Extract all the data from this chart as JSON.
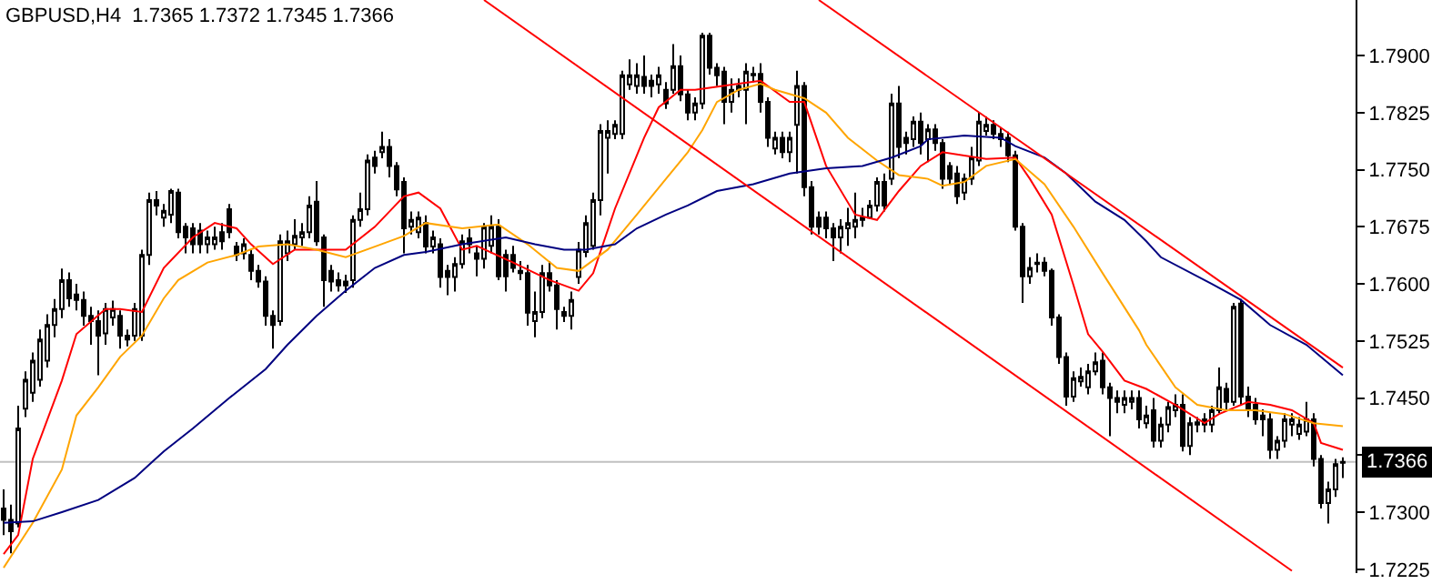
{
  "chart_data": {
    "type": "candlestick",
    "title": "GBPUSD,H4  1.7365 1.7372 1.7345 1.7366",
    "color": "#000000",
    "categories": [
      null,
      null,
      null,
      null,
      null,
      null,
      null,
      null,
      null,
      null,
      null,
      null,
      null,
      null,
      null,
      null,
      null,
      null,
      null,
      null,
      null,
      null,
      null,
      null,
      null,
      null,
      null,
      null,
      null,
      null,
      null,
      null,
      null,
      null,
      null,
      null,
      null,
      null,
      null,
      null,
      null,
      null,
      null,
      null,
      null,
      null,
      null,
      null,
      null,
      null,
      null,
      null,
      null,
      null,
      null,
      null,
      null,
      null,
      null,
      null,
      null,
      null,
      null,
      null,
      null,
      null,
      null,
      null,
      null,
      null,
      null,
      null,
      null,
      null,
      null,
      null,
      null,
      null,
      null,
      null,
      null,
      null,
      null,
      null,
      null,
      null,
      null,
      null,
      null,
      null,
      null,
      null,
      null,
      null,
      null,
      null,
      null,
      null,
      null,
      null,
      null,
      null,
      null,
      null,
      null,
      null,
      null,
      null,
      null,
      null,
      null,
      null,
      null,
      null,
      null,
      null,
      null,
      null,
      null,
      null,
      null,
      null,
      null,
      null,
      null,
      null,
      null,
      null,
      null,
      null,
      null,
      null,
      null,
      null,
      null,
      null,
      null,
      null,
      null,
      null,
      null,
      null,
      null,
      null,
      null,
      null,
      null,
      null,
      null,
      null,
      null,
      null,
      null,
      null,
      null,
      null,
      null,
      null,
      null,
      null,
      null,
      null,
      null,
      null,
      null,
      null,
      null,
      null,
      null,
      null,
      null,
      null,
      null,
      null,
      null,
      null,
      null,
      null,
      null,
      null,
      null,
      null,
      null,
      null,
      null
    ],
    "ohlc": [
      [
        1.7305,
        1.733,
        1.727,
        1.729
      ],
      [
        1.729,
        1.731,
        1.7246,
        1.7275
      ],
      [
        1.7285,
        1.744,
        1.728,
        1.741
      ],
      [
        1.7436,
        1.7485,
        1.7425,
        1.7474
      ],
      [
        1.7457,
        1.751,
        1.7445,
        1.7499
      ],
      [
        1.7474,
        1.754,
        1.7465,
        1.7527
      ],
      [
        1.7499,
        1.756,
        1.749,
        1.7546
      ],
      [
        1.7546,
        1.758,
        1.753,
        1.7567
      ],
      [
        1.7567,
        1.762,
        1.7555,
        1.7605
      ],
      [
        1.7605,
        1.7615,
        1.757,
        1.7581
      ],
      [
        1.7586,
        1.76,
        1.7565,
        1.7579
      ],
      [
        1.7579,
        1.759,
        1.7545,
        1.7558
      ],
      [
        1.7558,
        1.757,
        1.752,
        1.7551
      ],
      [
        1.7551,
        1.7565,
        1.748,
        1.7532
      ],
      [
        1.7535,
        1.7575,
        1.752,
        1.7567
      ],
      [
        1.7556,
        1.7578,
        1.7545,
        1.7567
      ],
      [
        1.7558,
        1.7565,
        1.7515,
        1.7532
      ],
      [
        1.7532,
        1.754,
        1.7518,
        1.7527
      ],
      [
        1.7532,
        1.7575,
        1.7525,
        1.7567
      ],
      [
        1.7532,
        1.7645,
        1.7525,
        1.7638
      ],
      [
        1.7638,
        1.772,
        1.7625,
        1.771
      ],
      [
        1.771,
        1.7722,
        1.769,
        1.7703
      ],
      [
        1.7687,
        1.7705,
        1.7675,
        1.7696
      ],
      [
        1.7691,
        1.7725,
        1.768,
        1.7722
      ],
      [
        1.772,
        1.7725,
        1.766,
        1.7668
      ],
      [
        1.7675,
        1.768,
        1.764,
        1.7661
      ],
      [
        1.7673,
        1.768,
        1.764,
        1.7652
      ],
      [
        1.767,
        1.768,
        1.764,
        1.7652
      ],
      [
        1.7652,
        1.767,
        1.764,
        1.7661
      ],
      [
        1.7652,
        1.7675,
        1.7645,
        1.7661
      ],
      [
        1.7668,
        1.768,
        1.7645,
        1.7656
      ],
      [
        1.7698,
        1.7705,
        1.766,
        1.7668
      ],
      [
        1.7649,
        1.7655,
        1.763,
        1.7638
      ],
      [
        1.764,
        1.766,
        1.7632,
        1.7652
      ],
      [
        1.7638,
        1.7645,
        1.7605,
        1.7617
      ],
      [
        1.7617,
        1.7625,
        1.7595,
        1.7603
      ],
      [
        1.7603,
        1.761,
        1.7545,
        1.7558
      ],
      [
        1.7558,
        1.7565,
        1.7515,
        1.7546
      ],
      [
        1.7551,
        1.7665,
        1.7545,
        1.7656
      ],
      [
        1.764,
        1.767,
        1.763,
        1.7656
      ],
      [
        1.7652,
        1.7685,
        1.7645,
        1.7663
      ],
      [
        1.7661,
        1.768,
        1.765,
        1.7668
      ],
      [
        1.7668,
        1.7715,
        1.766,
        1.7703
      ],
      [
        1.7708,
        1.7735,
        1.765,
        1.7656
      ],
      [
        1.7661,
        1.7665,
        1.757,
        1.7605
      ],
      [
        1.7617,
        1.7625,
        1.759,
        1.7603
      ],
      [
        1.7605,
        1.7615,
        1.759,
        1.7598
      ],
      [
        1.7603,
        1.7612,
        1.7588,
        1.7598
      ],
      [
        1.7605,
        1.769,
        1.7595,
        1.7684
      ],
      [
        1.7684,
        1.772,
        1.7675,
        1.7698
      ],
      [
        1.7698,
        1.777,
        1.769,
        1.7762
      ],
      [
        1.7766,
        1.7775,
        1.7745,
        1.7755
      ],
      [
        1.7773,
        1.78,
        1.7765,
        1.778
      ],
      [
        1.778,
        1.779,
        1.774,
        1.7755
      ],
      [
        1.7755,
        1.776,
        1.7715,
        1.7724
      ],
      [
        1.7734,
        1.774,
        1.764,
        1.7673
      ],
      [
        1.7675,
        1.7695,
        1.7665,
        1.7684
      ],
      [
        1.7668,
        1.7695,
        1.766,
        1.7687
      ],
      [
        1.768,
        1.769,
        1.764,
        1.7649
      ],
      [
        1.7649,
        1.767,
        1.764,
        1.7661
      ],
      [
        1.7652,
        1.766,
        1.7595,
        1.7609
      ],
      [
        1.7617,
        1.7625,
        1.7585,
        1.7609
      ],
      [
        1.7609,
        1.7635,
        1.759,
        1.7626
      ],
      [
        1.7626,
        1.7665,
        1.762,
        1.7656
      ],
      [
        1.766,
        1.7672,
        1.764,
        1.7652
      ],
      [
        1.764,
        1.765,
        1.761,
        1.7633
      ],
      [
        1.7633,
        1.768,
        1.762,
        1.7675
      ],
      [
        1.765,
        1.769,
        1.764,
        1.7675
      ],
      [
        1.7675,
        1.7685,
        1.7605,
        1.761
      ],
      [
        1.7638,
        1.7645,
        1.759,
        1.761
      ],
      [
        1.7638,
        1.765,
        1.7615,
        1.7621
      ],
      [
        1.7617,
        1.763,
        1.7605,
        1.7614
      ],
      [
        1.7614,
        1.7625,
        1.7545,
        1.7562
      ],
      [
        1.7551,
        1.759,
        1.753,
        1.7563
      ],
      [
        1.7563,
        1.7625,
        1.7555,
        1.7614
      ],
      [
        1.7614,
        1.763,
        1.759,
        1.7598
      ],
      [
        1.7598,
        1.7605,
        1.754,
        1.7567
      ],
      [
        1.7563,
        1.757,
        1.755,
        1.7558
      ],
      [
        1.7558,
        1.759,
        1.754,
        1.7579
      ],
      [
        1.7609,
        1.7655,
        1.76,
        1.7645
      ],
      [
        1.7642,
        1.769,
        1.7635,
        1.768
      ],
      [
        1.765,
        1.772,
        1.7645,
        1.771
      ],
      [
        1.771,
        1.781,
        1.769,
        1.7801
      ],
      [
        1.7792,
        1.7815,
        1.7745,
        1.7801
      ],
      [
        1.7797,
        1.7815,
        1.779,
        1.7809
      ],
      [
        1.7797,
        1.788,
        1.779,
        1.7874
      ],
      [
        1.7862,
        1.7895,
        1.7855,
        1.7874
      ],
      [
        1.786,
        1.789,
        1.785,
        1.7874
      ],
      [
        1.7872,
        1.79,
        1.785,
        1.786
      ],
      [
        1.7867,
        1.7875,
        1.7845,
        1.786
      ],
      [
        1.7862,
        1.7885,
        1.785,
        1.7874
      ],
      [
        1.7855,
        1.7865,
        1.783,
        1.7837
      ],
      [
        1.7855,
        1.7915,
        1.785,
        1.7886
      ],
      [
        1.7886,
        1.79,
        1.784,
        1.7849
      ],
      [
        1.7849,
        1.7855,
        1.7815,
        1.7825
      ],
      [
        1.7825,
        1.7845,
        1.7815,
        1.7837
      ],
      [
        1.7837,
        1.793,
        1.783,
        1.7926
      ],
      [
        1.7926,
        1.793,
        1.7875,
        1.7884
      ],
      [
        1.7884,
        1.789,
        1.786,
        1.7874
      ],
      [
        1.7879,
        1.7885,
        1.781,
        1.7839
      ],
      [
        1.7839,
        1.787,
        1.7825,
        1.7855
      ],
      [
        1.7855,
        1.787,
        1.7845,
        1.786
      ],
      [
        1.7855,
        1.789,
        1.781,
        1.7879
      ],
      [
        1.7874,
        1.7885,
        1.7865,
        1.7876
      ],
      [
        1.7876,
        1.789,
        1.7825,
        1.7839
      ],
      [
        1.7839,
        1.7845,
        1.778,
        1.7792
      ],
      [
        1.7778,
        1.78,
        1.777,
        1.7792
      ],
      [
        1.7792,
        1.78,
        1.7765,
        1.7773
      ],
      [
        1.7773,
        1.78,
        1.776,
        1.7792
      ],
      [
        1.7809,
        1.788,
        1.7745,
        1.786
      ],
      [
        1.786,
        1.7865,
        1.7715,
        1.7727
      ],
      [
        1.7727,
        1.7735,
        1.7665,
        1.7675
      ],
      [
        1.7687,
        1.7695,
        1.7665,
        1.7675
      ],
      [
        1.7687,
        1.7695,
        1.766,
        1.7673
      ],
      [
        1.7673,
        1.768,
        1.763,
        1.7661
      ],
      [
        1.7661,
        1.7685,
        1.764,
        1.7675
      ],
      [
        1.7673,
        1.77,
        1.765,
        1.768
      ],
      [
        1.7675,
        1.772,
        1.766,
        1.7684
      ],
      [
        1.7684,
        1.77,
        1.7675,
        1.7687
      ],
      [
        1.7687,
        1.771,
        1.7685,
        1.7703
      ],
      [
        1.7703,
        1.774,
        1.7695,
        1.7734
      ],
      [
        1.7734,
        1.7745,
        1.7695,
        1.7703
      ],
      [
        1.7738,
        1.785,
        1.773,
        1.7837
      ],
      [
        1.7837,
        1.786,
        1.7765,
        1.778
      ],
      [
        1.7792,
        1.78,
        1.777,
        1.7785
      ],
      [
        1.779,
        1.782,
        1.778,
        1.7813
      ],
      [
        1.7813,
        1.7825,
        1.777,
        1.7785
      ],
      [
        1.779,
        1.781,
        1.776,
        1.7803
      ],
      [
        1.7803,
        1.781,
        1.7775,
        1.7785
      ],
      [
        1.7785,
        1.779,
        1.7725,
        1.7738
      ],
      [
        1.7755,
        1.776,
        1.773,
        1.7738
      ],
      [
        1.7745,
        1.7755,
        1.7705,
        1.7715
      ],
      [
        1.772,
        1.7745,
        1.771,
        1.7738
      ],
      [
        1.7738,
        1.778,
        1.773,
        1.7766
      ],
      [
        1.7762,
        1.7825,
        1.7755,
        1.7813
      ],
      [
        1.7801,
        1.782,
        1.7795,
        1.7809
      ],
      [
        1.7809,
        1.7815,
        1.779,
        1.7797
      ],
      [
        1.7797,
        1.7805,
        1.778,
        1.779
      ],
      [
        1.7792,
        1.78,
        1.776,
        1.7769
      ],
      [
        1.7769,
        1.7775,
        1.767,
        1.7675
      ],
      [
        1.7675,
        1.768,
        1.7575,
        1.761
      ],
      [
        1.761,
        1.7635,
        1.76,
        1.7621
      ],
      [
        1.7626,
        1.764,
        1.7615,
        1.7628
      ],
      [
        1.7628,
        1.7635,
        1.761,
        1.7617
      ],
      [
        1.7617,
        1.762,
        1.7545,
        1.7556
      ],
      [
        1.7556,
        1.756,
        1.7495,
        1.7504
      ],
      [
        1.7504,
        1.751,
        1.744,
        1.7452
      ],
      [
        1.7452,
        1.7485,
        1.7445,
        1.7476
      ],
      [
        1.7472,
        1.749,
        1.7465,
        1.7478
      ],
      [
        1.7464,
        1.7495,
        1.7455,
        1.7485
      ],
      [
        1.7485,
        1.751,
        1.748,
        1.7497
      ],
      [
        1.7499,
        1.751,
        1.7455,
        1.7464
      ],
      [
        1.7464,
        1.747,
        1.74,
        1.745
      ],
      [
        1.745,
        1.746,
        1.743,
        1.7445
      ],
      [
        1.7441,
        1.746,
        1.743,
        1.745
      ],
      [
        1.7445,
        1.746,
        1.7435,
        1.745
      ],
      [
        1.745,
        1.746,
        1.741,
        1.7422
      ],
      [
        1.7417,
        1.744,
        1.741,
        1.7427
      ],
      [
        1.7434,
        1.745,
        1.7385,
        1.7394
      ],
      [
        1.7394,
        1.7425,
        1.7385,
        1.7415
      ],
      [
        1.7415,
        1.7445,
        1.7405,
        1.7438
      ],
      [
        1.7434,
        1.7455,
        1.7425,
        1.7441
      ],
      [
        1.7441,
        1.7455,
        1.738,
        1.7387
      ],
      [
        1.7387,
        1.7425,
        1.7375,
        1.7417
      ],
      [
        1.7415,
        1.7425,
        1.7405,
        1.7418
      ],
      [
        1.7415,
        1.743,
        1.7405,
        1.7422
      ],
      [
        1.7415,
        1.744,
        1.7405,
        1.7434
      ],
      [
        1.7434,
        1.749,
        1.743,
        1.7464
      ],
      [
        1.7462,
        1.747,
        1.7435,
        1.7445
      ],
      [
        1.7445,
        1.7575,
        1.744,
        1.757
      ],
      [
        1.7574,
        1.758,
        1.744,
        1.7452
      ],
      [
        1.7452,
        1.7465,
        1.7425,
        1.7434
      ],
      [
        1.7441,
        1.745,
        1.7415,
        1.7422
      ],
      [
        1.7427,
        1.7435,
        1.74,
        1.7422
      ],
      [
        1.7422,
        1.743,
        1.737,
        1.7382
      ],
      [
        1.7382,
        1.74,
        1.737,
        1.7394
      ],
      [
        1.7394,
        1.743,
        1.7385,
        1.7422
      ],
      [
        1.7415,
        1.743,
        1.74,
        1.7422
      ],
      [
        1.7403,
        1.7425,
        1.7395,
        1.7415
      ],
      [
        1.7406,
        1.7445,
        1.74,
        1.7422
      ],
      [
        1.7422,
        1.743,
        1.736,
        1.737
      ],
      [
        1.737,
        1.7375,
        1.7305,
        1.7312
      ],
      [
        1.7312,
        1.734,
        1.7285,
        1.733
      ],
      [
        1.733,
        1.737,
        1.732,
        1.7363
      ],
      [
        1.7365,
        1.7372,
        1.7345,
        1.7366
      ]
    ],
    "series": [
      {
        "type": "line",
        "color": "#ff0000",
        "values": [
          1.7245,
          null,
          1.727,
          null,
          1.737,
          null,
          null,
          null,
          1.7473,
          null,
          1.7534,
          null,
          null,
          null,
          1.7567,
          null,
          1.7567,
          null,
          null,
          1.7563,
          null,
          null,
          1.7621,
          null,
          null,
          null,
          1.7661,
          null,
          null,
          1.768,
          null,
          null,
          1.7673,
          null,
          1.7652,
          null,
          null,
          1.7626,
          null,
          null,
          1.7645,
          null,
          null,
          1.7645,
          null,
          null,
          null,
          1.7645,
          null,
          null,
          null,
          1.7675,
          null,
          null,
          null,
          1.7715,
          null,
          1.772,
          null,
          null,
          1.7699,
          null,
          null,
          1.7645,
          null,
          1.765,
          null,
          null,
          null,
          null,
          1.7628,
          null,
          null,
          null,
          null,
          1.7605,
          null,
          null,
          null,
          1.7591,
          null,
          1.7614,
          null,
          null,
          1.7699,
          null,
          null,
          null,
          1.7792,
          null,
          1.7832,
          null,
          null,
          1.7855,
          null,
          1.7855,
          null,
          null,
          null,
          null,
          null,
          1.7863,
          null,
          null,
          1.7867,
          null,
          null,
          null,
          1.7839,
          null,
          1.7839,
          null,
          null,
          1.7755,
          null,
          null,
          null,
          1.7691,
          null,
          null,
          1.7684,
          null,
          null,
          1.7722,
          null,
          null,
          1.7755,
          null,
          null,
          1.7773,
          null,
          null,
          null,
          null,
          null,
          1.7764,
          null,
          null,
          null,
          1.7766,
          null,
          1.7738,
          null,
          null,
          1.7691,
          null,
          null,
          1.7598,
          null,
          1.7534,
          null,
          1.7511,
          null,
          null,
          1.7473,
          null,
          null,
          1.7462,
          null,
          null,
          null,
          1.7441,
          null,
          null,
          null,
          1.7417,
          null,
          1.7429,
          null,
          null,
          null,
          1.7445,
          null,
          null,
          1.7441,
          null,
          null,
          1.7434,
          null,
          null,
          1.7417,
          1.7391,
          null,
          null,
          1.7382
        ]
      },
      {
        "type": "line",
        "color": "#ffa500",
        "values": [
          1.7227,
          null,
          null,
          null,
          1.7286,
          null,
          null,
          null,
          1.7356,
          null,
          1.7427,
          null,
          null,
          1.7464,
          null,
          null,
          1.7504,
          null,
          null,
          1.7532,
          null,
          null,
          1.7581,
          null,
          1.7605,
          null,
          null,
          null,
          1.7628,
          null,
          null,
          null,
          1.7638,
          null,
          null,
          1.7649,
          null,
          null,
          null,
          1.7652,
          null,
          null,
          null,
          1.7645,
          null,
          null,
          null,
          1.7635,
          null,
          null,
          null,
          1.7649,
          null,
          null,
          null,
          1.7663,
          null,
          null,
          1.768,
          null,
          null,
          null,
          null,
          1.7673,
          null,
          null,
          null,
          null,
          1.7678,
          null,
          null,
          null,
          1.7652,
          null,
          null,
          null,
          1.7621,
          null,
          null,
          1.7617,
          null,
          null,
          null,
          1.7645,
          null,
          null,
          null,
          1.7691,
          null,
          null,
          null,
          1.7738,
          null,
          null,
          1.7773,
          null,
          1.7802,
          null,
          1.7839,
          null,
          null,
          1.7855,
          null,
          null,
          1.7863,
          null,
          1.7855,
          null,
          null,
          null,
          1.7844,
          null,
          null,
          1.7825,
          null,
          null,
          1.7792,
          null,
          null,
          null,
          1.7762,
          null,
          null,
          1.7743,
          null,
          null,
          null,
          1.7738,
          null,
          1.7729,
          null,
          null,
          1.7734,
          null,
          null,
          1.7755,
          null,
          null,
          null,
          1.7764,
          null,
          null,
          null,
          1.7731,
          null,
          null,
          null,
          1.7675,
          null,
          null,
          null,
          1.7614,
          null,
          null,
          null,
          null,
          1.7539,
          1.752,
          null,
          null,
          null,
          1.7464,
          null,
          null,
          1.7441,
          null,
          null,
          null,
          1.7434,
          null,
          null,
          null,
          1.7434,
          null,
          null,
          null,
          1.7429,
          null,
          null,
          null,
          1.7417,
          null,
          null,
          null,
          1.7413
        ]
      },
      {
        "type": "line",
        "color": "#000080",
        "values": [
          1.7286,
          null,
          null,
          null,
          1.7288,
          null,
          null,
          null,
          1.73,
          null,
          null,
          null,
          null,
          1.7316,
          null,
          null,
          null,
          null,
          1.7345,
          null,
          null,
          null,
          1.738,
          null,
          null,
          null,
          1.741,
          null,
          null,
          null,
          null,
          1.745,
          null,
          null,
          null,
          null,
          1.7488,
          null,
          null,
          1.752,
          null,
          null,
          null,
          1.7558,
          null,
          null,
          null,
          1.7591,
          null,
          null,
          null,
          1.7621,
          null,
          null,
          null,
          1.7638,
          null,
          null,
          1.7642,
          null,
          null,
          null,
          null,
          1.7652,
          null,
          null,
          null,
          null,
          null,
          1.7661,
          null,
          null,
          null,
          1.7652,
          null,
          null,
          null,
          1.7645,
          null,
          null,
          1.7645,
          null,
          null,
          null,
          1.7652,
          null,
          null,
          1.7673,
          null,
          null,
          null,
          1.7691,
          null,
          null,
          1.7703,
          null,
          null,
          null,
          1.7722,
          null,
          null,
          null,
          null,
          1.7731,
          null,
          null,
          null,
          null,
          1.7745,
          null,
          null,
          null,
          null,
          1.7752,
          null,
          null,
          null,
          null,
          1.7755,
          null,
          null,
          null,
          1.7766,
          null,
          null,
          null,
          1.7781,
          1.779,
          null,
          null,
          null,
          null,
          1.7795,
          null,
          null,
          null,
          null,
          1.7792,
          null,
          1.7781,
          null,
          null,
          null,
          1.7766,
          null,
          null,
          1.7745,
          null,
          null,
          null,
          1.7708,
          null,
          null,
          null,
          1.7684,
          null,
          null,
          1.7656,
          null,
          1.7635,
          null,
          null,
          null,
          null,
          null,
          null,
          1.76,
          null,
          null,
          null,
          1.7579,
          null,
          null,
          null,
          1.7546,
          null,
          null,
          null,
          null,
          1.752,
          null,
          null,
          null,
          null,
          1.748
        ]
      },
      {
        "type": "line",
        "color": "#ff0000",
        "values": [
          null,
          null,
          null,
          null,
          null,
          null,
          null,
          null,
          null,
          null,
          null,
          null,
          null,
          null,
          null,
          null,
          null,
          null,
          null,
          null,
          null,
          null,
          null,
          null,
          null,
          null,
          null,
          null,
          null,
          null,
          null,
          null,
          null,
          null,
          null,
          null,
          null,
          null,
          null,
          null,
          null,
          null,
          null,
          null,
          null,
          null,
          null,
          null,
          null,
          null,
          null,
          null,
          null,
          null,
          null,
          null,
          null,
          null,
          null,
          null,
          null,
          null,
          null,
          null,
          null,
          null,
          1.7973,
          null,
          null,
          null,
          null,
          null,
          null,
          null,
          null,
          null,
          null,
          null,
          null,
          null,
          null,
          null,
          null,
          null,
          null,
          null,
          null,
          null,
          null,
          null,
          null,
          null,
          null,
          null,
          null,
          null,
          null,
          null,
          null,
          null,
          null,
          null,
          null,
          null,
          null,
          null,
          null,
          null,
          null,
          null,
          null,
          null,
          null,
          null,
          null,
          null,
          null,
          null,
          null,
          null,
          null,
          null,
          null,
          null,
          null,
          null,
          null,
          null,
          null,
          null,
          null,
          null,
          null,
          null,
          null,
          null,
          null,
          null,
          null,
          null,
          null,
          null,
          null,
          null,
          null,
          null,
          null,
          null,
          null,
          null,
          null,
          null,
          null,
          null,
          null,
          null,
          null,
          null,
          null,
          null,
          null,
          null,
          null,
          null,
          null,
          null,
          null,
          null,
          null,
          null,
          null,
          null,
          null,
          null,
          null,
          null,
          null,
          1.7223,
          null,
          null,
          null,
          null,
          null,
          null,
          null
        ]
      },
      {
        "type": "line",
        "color": "#ff0000",
        "values": [
          null,
          null,
          null,
          null,
          null,
          null,
          null,
          null,
          null,
          null,
          null,
          null,
          null,
          null,
          null,
          null,
          null,
          null,
          null,
          null,
          null,
          null,
          null,
          null,
          null,
          null,
          null,
          null,
          null,
          null,
          null,
          null,
          null,
          null,
          null,
          null,
          null,
          null,
          null,
          null,
          null,
          null,
          null,
          null,
          null,
          null,
          null,
          null,
          null,
          null,
          null,
          null,
          null,
          null,
          null,
          null,
          null,
          null,
          null,
          null,
          null,
          null,
          null,
          null,
          null,
          null,
          null,
          null,
          null,
          null,
          null,
          null,
          null,
          null,
          null,
          null,
          null,
          null,
          null,
          null,
          null,
          null,
          null,
          null,
          null,
          null,
          null,
          null,
          null,
          null,
          null,
          null,
          null,
          null,
          null,
          null,
          null,
          null,
          null,
          null,
          null,
          null,
          null,
          null,
          null,
          null,
          null,
          null,
          null,
          null,
          null,
          null,
          1.7973,
          null,
          null,
          null,
          null,
          null,
          null,
          null,
          null,
          null,
          null,
          null,
          null,
          null,
          null,
          null,
          null,
          null,
          null,
          null,
          null,
          null,
          null,
          null,
          null,
          null,
          null,
          null,
          null,
          null,
          null,
          null,
          null,
          null,
          null,
          null,
          null,
          null,
          null,
          null,
          null,
          null,
          null,
          null,
          null,
          null,
          null,
          null,
          null,
          null,
          null,
          null,
          null,
          null,
          null,
          null,
          null,
          null,
          null,
          null,
          null,
          null,
          null,
          null,
          null,
          null,
          null,
          null,
          null,
          null,
          null,
          null,
          1.749
        ]
      }
    ],
    "ylim": [
      1.722,
      1.7973
    ],
    "yticks": [
      {
        "value": 1.79,
        "label": "1.7900"
      },
      {
        "value": 1.7825,
        "label": "1.7825"
      },
      {
        "value": 1.775,
        "label": "1.7750"
      },
      {
        "value": 1.7675,
        "label": "1.7675"
      },
      {
        "value": 1.76,
        "label": "1.7600"
      },
      {
        "value": 1.7525,
        "label": "1.7525"
      },
      {
        "value": 1.745,
        "label": "1.7450"
      },
      {
        "value": 1.7375,
        "label": null
      },
      {
        "value": 1.73,
        "label": "1.7300"
      },
      {
        "value": 1.7225,
        "label": "1.7225"
      }
    ],
    "ref_lines": [
      {
        "axis": "y",
        "value": 1.7366,
        "label": "1.7366",
        "color": "#c0c0c0"
      }
    ],
    "tick_labels": "y"
  }
}
